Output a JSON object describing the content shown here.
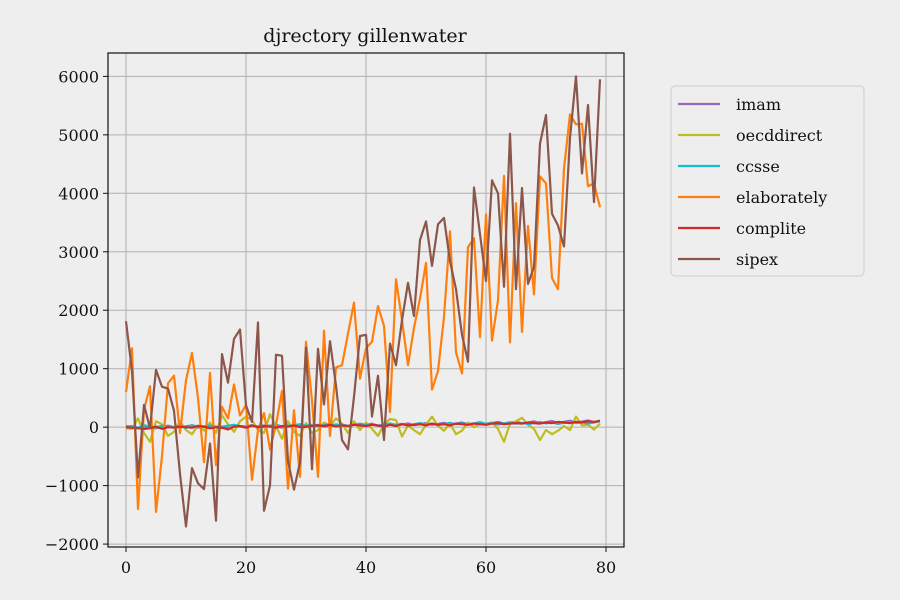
{
  "chart_data": {
    "type": "line",
    "title": "djrectory gillenwater",
    "xlabel": "",
    "ylabel": "",
    "xlim": [
      -3,
      83
    ],
    "ylim": [
      -2050,
      6400
    ],
    "xticks": [
      0,
      20,
      40,
      60,
      80
    ],
    "yticks": [
      -2000,
      -1000,
      0,
      1000,
      2000,
      3000,
      4000,
      5000,
      6000
    ],
    "xtick_labels": [
      "0",
      "20",
      "40",
      "60",
      "80"
    ],
    "ytick_labels": [
      "−2000",
      "−1000",
      "0",
      "1000",
      "2000",
      "3000",
      "4000",
      "5000",
      "6000"
    ],
    "grid": true,
    "legend_position": "right, outside plot",
    "series": [
      {
        "name": "imam",
        "color": "#9467bd",
        "values": [
          20,
          5,
          -10,
          15,
          0,
          -20,
          10,
          25,
          0,
          -5,
          15,
          30,
          -10,
          5,
          20,
          10,
          -15,
          0,
          25,
          10,
          -5,
          20,
          15,
          0,
          30,
          10,
          -10,
          20,
          35,
          15,
          5,
          25,
          40,
          10,
          20,
          45,
          30,
          15,
          50,
          25,
          35,
          60,
          20,
          40,
          55,
          30,
          45,
          65,
          35,
          50,
          70,
          40,
          55,
          75,
          45,
          60,
          80,
          50,
          65,
          85,
          55,
          70,
          90,
          60,
          75,
          95,
          65,
          80,
          100,
          70,
          85,
          105,
          75,
          90,
          110,
          80,
          95,
          115,
          85,
          100
        ]
      },
      {
        "name": "oecddirect",
        "color": "#bcbd22",
        "values": [
          -20,
          -30,
          150,
          -100,
          -250,
          100,
          50,
          -150,
          -80,
          100,
          -50,
          -120,
          30,
          -60,
          80,
          -100,
          200,
          50,
          -80,
          100,
          180,
          120,
          -50,
          -100,
          220,
          20,
          -200,
          100,
          -80,
          -150,
          70,
          -100,
          -50,
          80,
          20,
          150,
          60,
          -100,
          100,
          -50,
          80,
          -30,
          -150,
          50,
          140,
          120,
          -160,
          30,
          -50,
          -120,
          40,
          180,
          20,
          -60,
          60,
          -120,
          -60,
          80,
          0,
          50,
          60,
          80,
          -30,
          -250,
          60,
          100,
          160,
          40,
          -30,
          -220,
          -50,
          -120,
          -60,
          20,
          -50,
          180,
          30,
          40,
          -40,
          60
        ]
      },
      {
        "name": "ccsse",
        "color": "#17becf",
        "values": [
          10,
          20,
          -10,
          30,
          15,
          -5,
          25,
          10,
          0,
          20,
          -15,
          35,
          5,
          15,
          30,
          0,
          10,
          25,
          40,
          20,
          15,
          35,
          -5,
          30,
          20,
          45,
          10,
          25,
          30,
          50,
          25,
          40,
          15,
          35,
          55,
          30,
          45,
          20,
          40,
          60,
          35,
          50,
          25,
          45,
          65,
          40,
          55,
          30,
          50,
          70,
          45,
          60,
          35,
          55,
          75,
          50,
          65,
          40,
          60,
          80,
          55,
          70,
          45,
          65,
          85,
          60,
          75,
          50,
          70,
          90,
          65,
          80,
          55,
          75,
          95,
          70,
          85,
          60,
          80,
          100
        ]
      },
      {
        "name": "elaborately",
        "color": "#ff7f0e",
        "values": [
          600,
          1350,
          -1400,
          300,
          700,
          -1450,
          -500,
          750,
          880,
          -100,
          800,
          1270,
          500,
          -600,
          930,
          -650,
          350,
          150,
          730,
          200,
          380,
          -900,
          -50,
          240,
          -380,
          40,
          620,
          -1050,
          290,
          -850,
          1460,
          450,
          -850,
          1650,
          -150,
          1020,
          1060,
          1600,
          2130,
          830,
          1350,
          1460,
          2070,
          1730,
          260,
          2530,
          1830,
          1060,
          1700,
          2200,
          2810,
          640,
          960,
          1880,
          3350,
          1280,
          920,
          3080,
          3230,
          1540,
          3640,
          1480,
          2170,
          4300,
          1450,
          3830,
          1630,
          3440,
          2270,
          4290,
          4170,
          2550,
          2360,
          4420,
          5350,
          5180,
          5190,
          4120,
          4170,
          3760
        ]
      },
      {
        "name": "complite",
        "color": "#d62728",
        "values": [
          0,
          -10,
          -20,
          -30,
          -20,
          10,
          -30,
          0,
          -10,
          10,
          0,
          -10,
          20,
          10,
          -20,
          0,
          -10,
          -40,
          10,
          20,
          -10,
          30,
          0,
          20,
          10,
          -10,
          20,
          10,
          30,
          0,
          10,
          20,
          30,
          20,
          40,
          10,
          30,
          20,
          40,
          30,
          20,
          40,
          30,
          10,
          40,
          20,
          50,
          30,
          40,
          50,
          30,
          60,
          40,
          50,
          30,
          60,
          50,
          40,
          60,
          50,
          40,
          60,
          70,
          50,
          60,
          70,
          60,
          80,
          70,
          60,
          80,
          70,
          90,
          80,
          70,
          90,
          80,
          100,
          90,
          110
        ]
      },
      {
        "name": "sipex",
        "color": "#8c564b",
        "values": [
          1810,
          960,
          -860,
          380,
          -20,
          980,
          690,
          660,
          280,
          -800,
          -1700,
          -700,
          -960,
          -1060,
          -280,
          -1600,
          1250,
          760,
          1510,
          1670,
          370,
          90,
          1790,
          -1430,
          -1000,
          1240,
          1220,
          -580,
          -1070,
          -600,
          1360,
          -720,
          1340,
          390,
          1470,
          710,
          -220,
          -380,
          520,
          1560,
          1580,
          180,
          880,
          -220,
          1430,
          1060,
          1830,
          2470,
          1900,
          3200,
          3520,
          2760,
          3470,
          3580,
          2840,
          2360,
          1580,
          1120,
          4100,
          3300,
          2500,
          4220,
          4000,
          2400,
          5020,
          2360,
          4090,
          2450,
          2740,
          4850,
          5340,
          3650,
          3450,
          3090,
          4950,
          6000,
          4340,
          5510,
          3850,
          5950
        ]
      }
    ]
  }
}
